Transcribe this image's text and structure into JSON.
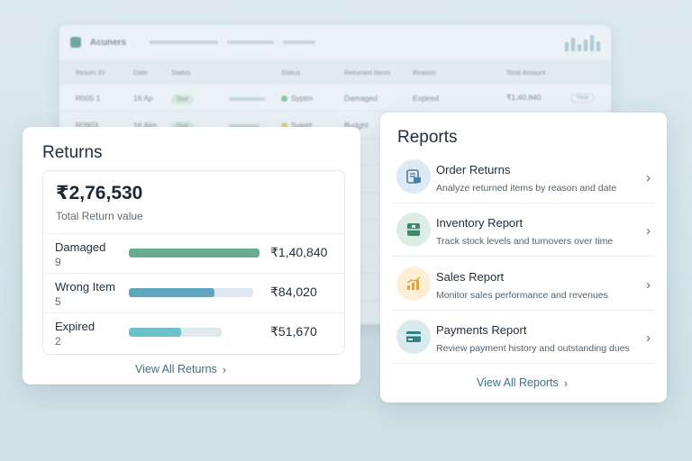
{
  "background_table": {
    "app_name": "Acuners",
    "columns": [
      "Return ID",
      "Date",
      "Status",
      "Status",
      "Returned Items",
      "Reason",
      "Total Amount"
    ],
    "rows": [
      {
        "id": "R005 1",
        "date": "16 Ap",
        "chip": "Due",
        "status": "Syptm",
        "status_color": "#79c08f",
        "item": "Damaged",
        "reason": "Expired",
        "amount": "₹1,40,840",
        "btn": "View"
      },
      {
        "id": "R0903",
        "date": "16 Alm",
        "chip": "Due",
        "status": "Syield",
        "status_color": "#e6c77a",
        "item": "Budghl",
        "reason": "",
        "amount": "",
        "btn": ""
      }
    ]
  },
  "returns": {
    "title": "Returns",
    "total_amount": "₹2,76,530",
    "total_label": "Total Return value",
    "rows": [
      {
        "label": "Damaged",
        "count": "9",
        "value": "₹1,40,840",
        "fill": 1.0,
        "track_width": 145,
        "color": "#6bab8f"
      },
      {
        "label": "Wrong Item",
        "count": "5",
        "value": "₹84,020",
        "fill": 0.69,
        "track_width": 138,
        "color": "#5da6be"
      },
      {
        "label": "Expired",
        "count": "2",
        "value": "₹51,670",
        "fill": 0.56,
        "track_width": 103,
        "color": "#6cc0cc"
      }
    ],
    "link": "View All Returns"
  },
  "reports": {
    "title": "Reports",
    "items": [
      {
        "title": "Order Returns",
        "desc": "Analyze returned items by reason and date",
        "icon": "order-returns-icon",
        "bg": "#dde9f3"
      },
      {
        "title": "Inventory Report",
        "desc": "Track stock levels and turnovers over time",
        "icon": "inventory-icon",
        "bg": "#dcede6"
      },
      {
        "title": "Sales Report",
        "desc": "Monitor sales performance and revenues",
        "icon": "sales-chart-icon",
        "bg": "#fbf0d6"
      },
      {
        "title": "Payments Report",
        "desc": "Review payment history and outstanding dues",
        "icon": "payment-card-icon",
        "bg": "#d8ebec"
      }
    ],
    "link": "View All Reports"
  }
}
